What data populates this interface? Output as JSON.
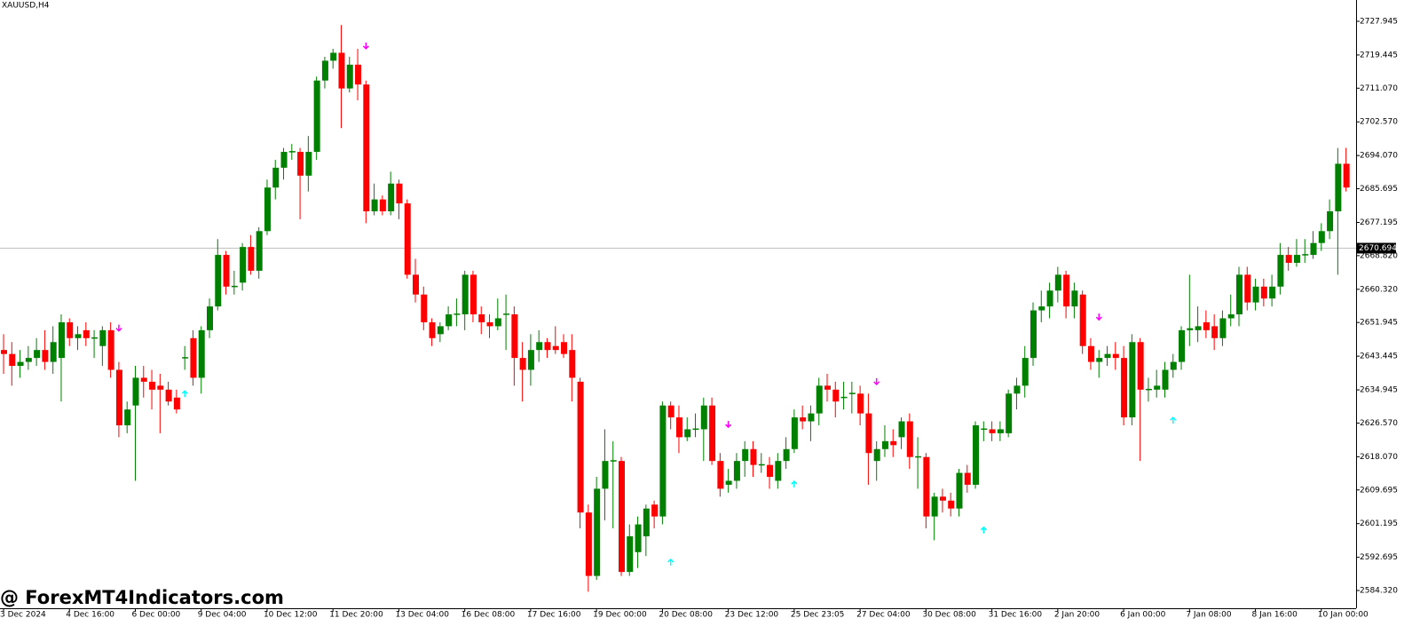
{
  "chart_data": {
    "type": "candlestick",
    "title": "XAUUSD,H4",
    "watermark": "@ ForexMT4Indicators.com",
    "up_color": "#008000",
    "down_color": "#ff0000",
    "categories": [
      "3 Dec 2024",
      null,
      null,
      null,
      null,
      null,
      null,
      null,
      "4 Dec 16:00",
      null,
      null,
      null,
      null,
      null,
      null,
      null,
      "6 Dec 00:00",
      null,
      null,
      null,
      null,
      null,
      null,
      null,
      "9 Dec 04:00",
      null,
      null,
      null,
      null,
      null,
      null,
      null,
      "10 Dec 12:00",
      null,
      null,
      null,
      null,
      null,
      null,
      null,
      "11 Dec 20:00",
      null,
      null,
      null,
      null,
      null,
      null,
      null,
      "13 Dec 04:00",
      null,
      null,
      null,
      null,
      null,
      null,
      null,
      "16 Dec 08:00",
      null,
      null,
      null,
      null,
      null,
      null,
      null,
      "17 Dec 16:00",
      null,
      null,
      null,
      null,
      null,
      null,
      null,
      "19 Dec 00:00",
      null,
      null,
      null,
      null,
      null,
      null,
      null,
      "20 Dec 08:00",
      null,
      null,
      null,
      null,
      null,
      null,
      null,
      "23 Dec 12:00",
      null,
      null,
      null,
      null,
      null,
      null,
      null,
      "25 Dec 23:05",
      null,
      null,
      null,
      null,
      null,
      null,
      null,
      "27 Dec 04:00",
      null,
      null,
      null,
      null,
      null,
      null,
      null,
      "30 Dec 08:00",
      null,
      null,
      null,
      null,
      null,
      null,
      null,
      "31 Dec 16:00",
      null,
      null,
      null,
      null,
      null,
      null,
      null,
      "2 Jan 20:00",
      null,
      null,
      null,
      null,
      null,
      null,
      null,
      "6 Jan 00:00",
      null,
      null,
      null,
      null,
      null,
      null,
      null,
      "7 Jan 08:00",
      null,
      null,
      null,
      null,
      null,
      null,
      null,
      "8 Jan 16:00",
      null,
      null,
      null,
      null,
      null,
      null,
      null,
      "10 Jan 00:00",
      null,
      null,
      null
    ],
    "open": [
      2645,
      2644,
      2641,
      2642,
      2643,
      2645,
      2642,
      2643,
      2652,
      2648,
      2650,
      2648,
      2646,
      2650,
      2640,
      2626,
      2631,
      2638,
      2637,
      2636,
      2635,
      2633,
      2643,
      2648,
      2638,
      2650,
      2656,
      2669,
      2661,
      2662,
      2671,
      2665,
      2675,
      2686,
      2691,
      2695,
      2695,
      2689,
      2695,
      2713,
      2718,
      2720,
      2711,
      2717,
      2712,
      2680,
      2683,
      2680,
      2687,
      2682,
      2664,
      2659,
      2652,
      2649,
      2651,
      2654,
      2654,
      2664,
      2654,
      2652,
      2651,
      2654,
      2654,
      2643,
      2640,
      2645,
      2647,
      2646,
      2647,
      2645,
      2637,
      2604,
      2588,
      2610,
      2617,
      2617,
      2589,
      2594,
      2598,
      2606,
      2603,
      2631,
      2628,
      2623,
      2625,
      2625,
      2631,
      2617,
      2611,
      2612,
      2617,
      2620,
      2616,
      2616,
      2612,
      2617,
      2620,
      2628,
      2627,
      2629,
      2636,
      2635,
      2633,
      2634,
      2634,
      2629,
      2617,
      2620,
      2622,
      2623,
      2627,
      2618,
      2618,
      2603,
      2608,
      2607,
      2605,
      2614,
      2611,
      2625,
      2625,
      2624,
      2624,
      2634,
      2636,
      2643,
      2655,
      2656,
      2660,
      2664,
      2656,
      2659,
      2646,
      2642,
      2643,
      2644,
      2643,
      2628,
      2647,
      2635,
      2635,
      2635,
      2640,
      2642,
      2650,
      2650,
      2652,
      2651,
      2648,
      2653,
      2654,
      2664,
      2657,
      2661,
      2658,
      2661,
      2669,
      2667,
      2669,
      2669,
      2672,
      2675,
      2680,
      2692
    ],
    "high": [
      2649,
      2647,
      2645,
      2646,
      2648,
      2650,
      2651,
      2654,
      2653,
      2651,
      2652,
      2650,
      2651,
      2652,
      2642,
      2632,
      2641,
      2641,
      2640,
      2639,
      2637,
      2635,
      2646,
      2650,
      2651,
      2658,
      2673,
      2670,
      2665,
      2672,
      2674,
      2676,
      2688,
      2693,
      2696,
      2697,
      2696,
      2699,
      2714,
      2719,
      2721,
      2727,
      2719,
      2721,
      2713,
      2687,
      2684,
      2690,
      2688,
      2683,
      2668,
      2661,
      2653,
      2652,
      2656,
      2658,
      2665,
      2665,
      2656,
      2654,
      2658,
      2659,
      2656,
      2647,
      2649,
      2650,
      2648,
      2651,
      2649,
      2649,
      2638,
      2606,
      2613,
      2625,
      2622,
      2618,
      2601,
      2603,
      2606,
      2607,
      2632,
      2632,
      2631,
      2628,
      2629,
      2633,
      2633,
      2619,
      2615,
      2619,
      2622,
      2622,
      2619,
      2618,
      2619,
      2623,
      2630,
      2631,
      2631,
      2638,
      2639,
      2637,
      2637,
      2637,
      2636,
      2634,
      2622,
      2626,
      2625,
      2628,
      2629,
      2623,
      2619,
      2609,
      2610,
      2609,
      2615,
      2616,
      2627,
      2627,
      2627,
      2627,
      2635,
      2638,
      2646,
      2657,
      2660,
      2662,
      2666,
      2665,
      2662,
      2660,
      2648,
      2645,
      2646,
      2647,
      2646,
      2649,
      2648,
      2638,
      2640,
      2642,
      2644,
      2651,
      2664,
      2656,
      2655,
      2654,
      2655,
      2659,
      2666,
      2666,
      2663,
      2663,
      2664,
      2672,
      2671,
      2673,
      2673,
      2675,
      2677,
      2683,
      2696,
      2696
    ],
    "low": [
      2639,
      2636,
      2638,
      2640,
      2641,
      2640,
      2639,
      2632,
      2646,
      2645,
      2646,
      2643,
      2641,
      2638,
      2623,
      2624,
      2612,
      2633,
      2630,
      2624,
      2631,
      2629,
      2640,
      2636,
      2634,
      2648,
      2655,
      2659,
      2659,
      2660,
      2664,
      2663,
      2674,
      2683,
      2688,
      2693,
      2678,
      2685,
      2693,
      2711,
      2716,
      2701,
      2710,
      2708,
      2677,
      2679,
      2679,
      2679,
      2678,
      2663,
      2657,
      2650,
      2646,
      2647,
      2650,
      2651,
      2650,
      2652,
      2649,
      2648,
      2650,
      2645,
      2636,
      2632,
      2636,
      2642,
      2643,
      2644,
      2643,
      2632,
      2600,
      2584,
      2587,
      2602,
      2600,
      2588,
      2588,
      2590,
      2593,
      2600,
      2601,
      2625,
      2619,
      2622,
      2623,
      2617,
      2616,
      2608,
      2609,
      2610,
      2613,
      2613,
      2614,
      2610,
      2610,
      2615,
      2619,
      2625,
      2622,
      2626,
      2632,
      2628,
      2630,
      2629,
      2626,
      2611,
      2612,
      2618,
      2618,
      2620,
      2615,
      2610,
      2600,
      2597,
      2604,
      2603,
      2603,
      2609,
      2610,
      2622,
      2622,
      2622,
      2623,
      2630,
      2633,
      2641,
      2652,
      2653,
      2657,
      2653,
      2653,
      2644,
      2640,
      2638,
      2641,
      2640,
      2626,
      2626,
      2617,
      2632,
      2633,
      2633,
      2638,
      2640,
      2646,
      2647,
      2648,
      2645,
      2646,
      2651,
      2651,
      2655,
      2655,
      2656,
      2656,
      2659,
      2665,
      2666,
      2667,
      2668,
      2670,
      2673,
      2664,
      2685
    ],
    "close": [
      2644,
      2641,
      2642,
      2643,
      2645,
      2642,
      2647,
      2652,
      2648,
      2649,
      2648,
      2648.2,
      2650,
      2640,
      2626,
      2630,
      2638,
      2637,
      2635,
      2635,
      2632,
      2630,
      2643.2,
      2638,
      2650,
      2656,
      2669,
      2661,
      2661.2,
      2671,
      2665,
      2675,
      2686,
      2691,
      2695,
      2695.2,
      2689,
      2695,
      2713,
      2718,
      2720,
      2711,
      2717,
      2712,
      2680,
      2683,
      2680,
      2687,
      2682,
      2664,
      2659,
      2652,
      2648,
      2651,
      2654,
      2654.2,
      2664,
      2654,
      2652,
      2651,
      2653,
      2654.2,
      2643,
      2640,
      2645,
      2647,
      2645,
      2645,
      2644,
      2638,
      2604,
      2588,
      2610,
      2617,
      2617.2,
      2589,
      2598,
      2601,
      2605,
      2603,
      2631,
      2628,
      2623,
      2625,
      2625.2,
      2631,
      2617,
      2610,
      2612,
      2617,
      2620,
      2616,
      2616.2,
      2613,
      2617,
      2620,
      2628,
      2627,
      2629,
      2636,
      2635,
      2632,
      2633.2,
      2634.2,
      2629,
      2619,
      2620,
      2622,
      2621,
      2627,
      2618,
      2618.2,
      2603,
      2608,
      2607,
      2605,
      2614,
      2611,
      2626,
      2625.2,
      2624,
      2625,
      2634,
      2636,
      2643,
      2655,
      2656,
      2660,
      2664,
      2656,
      2660,
      2646,
      2642,
      2643,
      2644,
      2643,
      2628,
      2647,
      2635,
      2635.2,
      2636,
      2640,
      2642,
      2650,
      2650.5,
      2651,
      2650,
      2648,
      2653,
      2654,
      2664,
      2657,
      2661,
      2658,
      2661,
      2669,
      2667,
      2669,
      2669.2,
      2672,
      2675,
      2680,
      2692,
      2686
    ],
    "sell_signals": {
      "color": "#ff00ff",
      "x": [
        14,
        44,
        88,
        106,
        133
      ],
      "y": [
        2650.5,
        2721.7,
        2626.2,
        2637.0,
        2653.3
      ]
    },
    "buy_signals": {
      "color": "#00ffff",
      "x": [
        22,
        81,
        96,
        119,
        142
      ],
      "y": [
        2634.0,
        2591.5,
        2611.2,
        2599.6,
        2627.3
      ]
    },
    "current_price": {
      "value": 2670.694,
      "label": "2670.694"
    },
    "ylim": [
      2579.84,
      2733.32
    ],
    "yticks": [
      2727.945,
      2719.445,
      {
        "value": 2711.07,
        "label": "2711.070"
      },
      {
        "value": 2702.57,
        "label": "2702.570"
      },
      {
        "value": 2694.07,
        "label": "2694.070"
      },
      2685.695,
      2677.195,
      {
        "value": 2668.82,
        "label": "2668.820"
      },
      {
        "value": 2660.32,
        "label": "2660.320"
      },
      2651.945,
      2643.445,
      2634.945,
      {
        "value": 2626.57,
        "label": "2626.570"
      },
      {
        "value": 2618.07,
        "label": "2618.070"
      },
      2609.695,
      2601.195,
      2592.695,
      {
        "value": 2584.32,
        "label": "2584.320"
      }
    ]
  }
}
